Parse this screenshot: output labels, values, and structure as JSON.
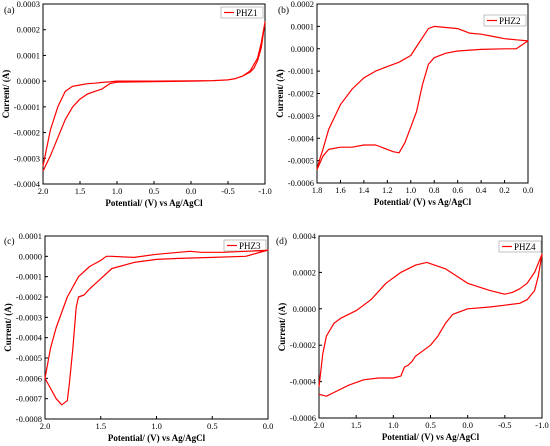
{
  "chart_data": [
    {
      "type": "line",
      "panel_label": "(a)",
      "legend": "PHZ1",
      "xlabel": "Potential/ (V) vs Ag/AgCl",
      "ylabel": "Current/ (A)",
      "xlim": [
        2.0,
        -1.0
      ],
      "ylim": [
        -0.0004,
        0.0003
      ],
      "xticks": [
        2.0,
        1.5,
        1.0,
        0.5,
        0.0,
        -0.5,
        -1.0
      ],
      "xtick_labels": [
        "2.0",
        "1.5",
        "1.0",
        "0.5",
        "0.0",
        "-0.5",
        "-1.0"
      ],
      "yticks": [
        -0.0004,
        -0.0003,
        -0.0002,
        -0.0001,
        0.0,
        0.0001,
        0.0002,
        0.0003
      ],
      "ytick_labels": [
        "-0.0004",
        "-0.0003",
        "-0.0002",
        "-0.0001",
        "0.0000",
        "0.0001",
        "0.0002",
        "0.0003"
      ],
      "series": [
        {
          "x": [
            2.0,
            1.95,
            1.9,
            1.8,
            1.7,
            1.6,
            1.5,
            1.4,
            1.3,
            1.2,
            1.1,
            1.0,
            0.5,
            0.0,
            -0.3,
            -0.5,
            -0.6,
            -0.7,
            -0.8,
            -0.9,
            -0.95,
            -1.0,
            -0.98,
            -0.95,
            -0.9,
            -0.85,
            -0.8,
            -0.7,
            -0.6,
            -0.5,
            -0.3,
            0.0,
            0.5,
            1.0,
            1.1,
            1.2,
            1.3,
            1.4,
            1.5,
            1.6,
            1.7,
            1.8,
            1.9,
            2.0
          ],
          "y": [
            -0.00035,
            -0.00032,
            -0.00029,
            -0.00022,
            -0.00015,
            -0.0001,
            -7e-05,
            -5e-05,
            -4e-05,
            -3e-05,
            -1e-05,
            -4e-06,
            -2e-06,
            0.0,
            2e-06,
            5e-06,
            1e-05,
            2e-05,
            4e-05,
            9e-05,
            0.00015,
            0.00023,
            0.00019,
            0.00013,
            8e-05,
            5e-05,
            3.5e-05,
            2e-05,
            1e-05,
            5e-06,
            2e-06,
            1e-06,
            0.0,
            0.0,
            -3e-06,
            -5e-06,
            -8e-06,
            -1e-05,
            -1.5e-05,
            -2e-05,
            -4e-05,
            -0.0001,
            -0.00019,
            -0.00033
          ]
        }
      ]
    },
    {
      "type": "line",
      "panel_label": "(b)",
      "legend": "PHZ2",
      "xlabel": "Potential/ (V) vs Ag/AgCl",
      "ylabel": "Current/ (A)",
      "xlim": [
        1.8,
        0.0
      ],
      "ylim": [
        -0.0006,
        0.0002
      ],
      "xticks": [
        1.8,
        1.6,
        1.4,
        1.2,
        1.0,
        0.8,
        0.6,
        0.4,
        0.2,
        0.0
      ],
      "xtick_labels": [
        "1.8",
        "1.6",
        "1.4",
        "1.2",
        "1.0",
        "0.8",
        "0.6",
        "0.4",
        "0.2",
        "0.0"
      ],
      "yticks": [
        -0.0006,
        -0.0005,
        -0.0004,
        -0.0003,
        -0.0002,
        -0.0001,
        0.0,
        0.0001,
        0.0002
      ],
      "ytick_labels": [
        "-0.0006",
        "-0.0005",
        "-0.0004",
        "-0.0003",
        "-0.0002",
        "-0.0001",
        "0.0000",
        "0.0001",
        "0.0002"
      ],
      "series": [
        {
          "x": [
            1.8,
            1.78,
            1.75,
            1.7,
            1.6,
            1.5,
            1.4,
            1.3,
            1.2,
            1.1,
            1.0,
            0.95,
            0.9,
            0.85,
            0.8,
            0.7,
            0.6,
            0.5,
            0.4,
            0.3,
            0.2,
            0.1,
            0.0,
            0.1,
            0.2,
            0.4,
            0.6,
            0.7,
            0.8,
            0.85,
            0.9,
            0.95,
            1.0,
            1.05,
            1.1,
            1.15,
            1.2,
            1.3,
            1.4,
            1.5,
            1.6,
            1.7,
            1.75,
            1.8
          ],
          "y": [
            -0.00054,
            -0.0005,
            -0.00045,
            -0.00036,
            -0.00025,
            -0.00018,
            -0.00013,
            -0.0001,
            -8e-05,
            -6e-05,
            -3e-05,
            1e-05,
            5e-05,
            9e-05,
            0.0001,
            9.5e-05,
            9e-05,
            7e-05,
            6.5e-05,
            5.5e-05,
            4.5e-05,
            4e-05,
            3.5e-05,
            0.0,
            0.0,
            -3e-06,
            -1e-05,
            -2e-05,
            -4e-05,
            -7e-05,
            -0.00016,
            -0.00028,
            -0.00035,
            -0.00042,
            -0.000465,
            -0.00046,
            -0.00045,
            -0.00043,
            -0.00043,
            -0.00044,
            -0.00044,
            -0.00045,
            -0.00048,
            -0.00054
          ]
        }
      ]
    },
    {
      "type": "line",
      "panel_label": "(c)",
      "legend": "PHZ3",
      "xlabel": "Potential/ (V) vs Ag/AgCl",
      "ylabel": "Current/ (A)",
      "xlim": [
        2.0,
        0.0
      ],
      "ylim": [
        -0.0008,
        0.0001
      ],
      "xticks": [
        2.0,
        1.5,
        1.0,
        0.5,
        0.0
      ],
      "xtick_labels": [
        "2.0",
        "1.5",
        "1.0",
        "0.5",
        "0.0"
      ],
      "yticks": [
        -0.0008,
        -0.0007,
        -0.0006,
        -0.0005,
        -0.0004,
        -0.0003,
        -0.0002,
        -0.0001,
        0.0,
        0.0001
      ],
      "ytick_labels": [
        "-0.0008",
        "-0.0007",
        "-0.0006",
        "-0.0005",
        "-0.0004",
        "-0.0003",
        "-0.0002",
        "-0.0001",
        "0.0000",
        "0.0001"
      ],
      "series": [
        {
          "x": [
            2.0,
            1.95,
            1.9,
            1.8,
            1.7,
            1.6,
            1.5,
            1.45,
            1.4,
            1.2,
            1.0,
            0.8,
            0.7,
            0.6,
            0.4,
            0.2,
            0.0,
            0.2,
            0.5,
            0.8,
            1.0,
            1.2,
            1.4,
            1.5,
            1.6,
            1.65,
            1.7,
            1.72,
            1.75,
            1.78,
            1.8,
            1.85,
            1.9,
            1.95,
            2.0
          ],
          "y": [
            -0.0006,
            -0.00045,
            -0.00035,
            -0.0002,
            -0.0001,
            -5e-05,
            -2e-05,
            0.0,
            0.0,
            -5e-06,
            1e-05,
            2e-05,
            2.5e-05,
            2e-05,
            2e-05,
            2.5e-05,
            3e-05,
            0.0,
            -5e-06,
            -1e-05,
            -1.5e-05,
            -3e-05,
            -6e-05,
            -0.00011,
            -0.00016,
            -0.00019,
            -0.0002,
            -0.00025,
            -0.00045,
            -0.00062,
            -0.00071,
            -0.00073,
            -0.0007,
            -0.00065,
            -0.0006
          ]
        }
      ]
    },
    {
      "type": "line",
      "panel_label": "(d)",
      "legend": "PHZ4",
      "xlabel": "Potential/ (V) vs Ag/AgCl",
      "ylabel": "Current/ (A)",
      "xlim": [
        2.0,
        -1.0
      ],
      "ylim": [
        -0.0006,
        0.0004
      ],
      "xticks": [
        2.0,
        1.5,
        1.0,
        0.5,
        0.0,
        -0.5,
        -1.0
      ],
      "xtick_labels": [
        "2.0",
        "1.5",
        "1.0",
        "0.5",
        "0.0",
        "-0.5",
        "-1.0"
      ],
      "yticks": [
        -0.0006,
        -0.0004,
        -0.0002,
        0.0,
        0.0002,
        0.0004
      ],
      "ytick_labels": [
        "-0.0006",
        "-0.0004",
        "-0.0002",
        "0.0000",
        "0.0002",
        "0.0004"
      ],
      "series": [
        {
          "x": [
            2.0,
            1.95,
            1.9,
            1.8,
            1.7,
            1.6,
            1.5,
            1.3,
            1.1,
            0.9,
            0.7,
            0.55,
            0.3,
            0.0,
            -0.3,
            -0.5,
            -0.6,
            -0.7,
            -0.8,
            -0.9,
            -0.95,
            -1.0,
            -0.95,
            -0.9,
            -0.8,
            -0.7,
            -0.5,
            -0.3,
            0.0,
            0.2,
            0.3,
            0.4,
            0.5,
            0.6,
            0.7,
            0.75,
            0.8,
            0.85,
            0.9,
            1.0,
            1.2,
            1.4,
            1.6,
            1.8,
            1.9,
            2.0
          ],
          "y": [
            -0.00043,
            -0.00025,
            -0.00015,
            -8e-05,
            -5e-05,
            -3e-05,
            -1e-05,
            5e-05,
            0.00014,
            0.0002,
            0.00024,
            0.000255,
            0.00022,
            0.00014,
            0.0001,
            8e-05,
            9e-05,
            0.00011,
            0.00014,
            0.0002,
            0.00025,
            0.0003,
            0.00018,
            0.0001,
            5e-05,
            3e-05,
            2e-05,
            1e-05,
            0.0,
            -3e-05,
            -8e-05,
            -0.00015,
            -0.0002,
            -0.00023,
            -0.00026,
            -0.00029,
            -0.00031,
            -0.00032,
            -0.00037,
            -0.00038,
            -0.00038,
            -0.00039,
            -0.00042,
            -0.00046,
            -0.00048,
            -0.00047
          ]
        }
      ]
    }
  ]
}
